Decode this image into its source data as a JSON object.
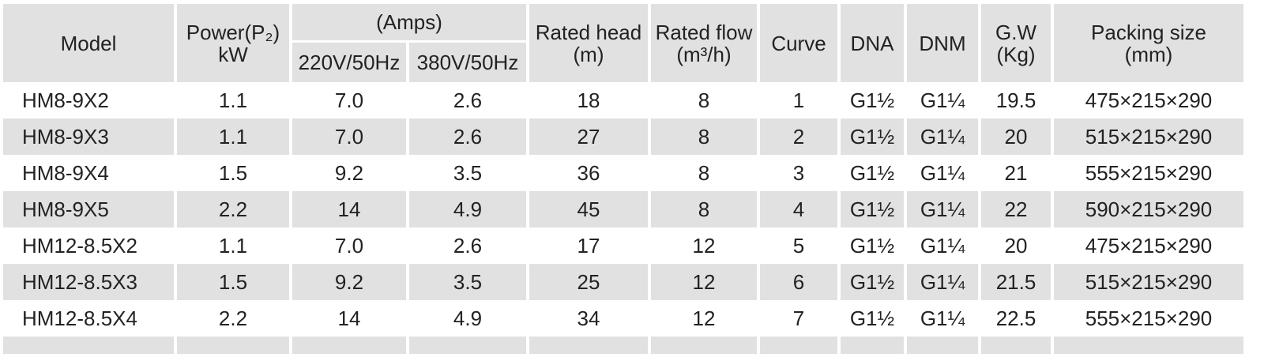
{
  "table": {
    "header": {
      "model": "Model",
      "power": [
        "Power(P₂)",
        "kW"
      ],
      "amps": "(Amps)",
      "v220": "220V/50Hz",
      "v380": "380V/50Hz",
      "head": [
        "Rated head",
        "(m)"
      ],
      "flow": [
        "Rated flow",
        "(m³/h)"
      ],
      "curve": "Curve",
      "dna": "DNA",
      "dnm": "DNM",
      "gw": [
        "G.W",
        "(Kg)"
      ],
      "packing": [
        "Packing size",
        "(mm)"
      ]
    },
    "rows": [
      [
        "HM8-9X2",
        "1.1",
        "7.0",
        "2.6",
        "18",
        "8",
        "1",
        "G1½",
        "G1¼",
        "19.5",
        "475×215×290"
      ],
      [
        "HM8-9X3",
        "1.1",
        "7.0",
        "2.6",
        "27",
        "8",
        "2",
        "G1½",
        "G1¼",
        "20",
        "515×215×290"
      ],
      [
        "HM8-9X4",
        "1.5",
        "9.2",
        "3.5",
        "36",
        "8",
        "3",
        "G1½",
        "G1¼",
        "21",
        "555×215×290"
      ],
      [
        "HM8-9X5",
        "2.2",
        "14",
        "4.9",
        "45",
        "8",
        "4",
        "G1½",
        "G1¼",
        "22",
        "590×215×290"
      ],
      [
        "HM12-8.5X2",
        "1.1",
        "7.0",
        "2.6",
        "17",
        "12",
        "5",
        "G1½",
        "G1¼",
        "20",
        "475×215×290"
      ],
      [
        "HM12-8.5X3",
        "1.5",
        "9.2",
        "3.5",
        "25",
        "12",
        "6",
        "G1½",
        "G1¼",
        "21.5",
        "515×215×290"
      ],
      [
        "HM12-8.5X4",
        "2.2",
        "14",
        "4.9",
        "34",
        "12",
        "7",
        "G1½",
        "G1¼",
        "22.5",
        "555×215×290"
      ]
    ]
  }
}
